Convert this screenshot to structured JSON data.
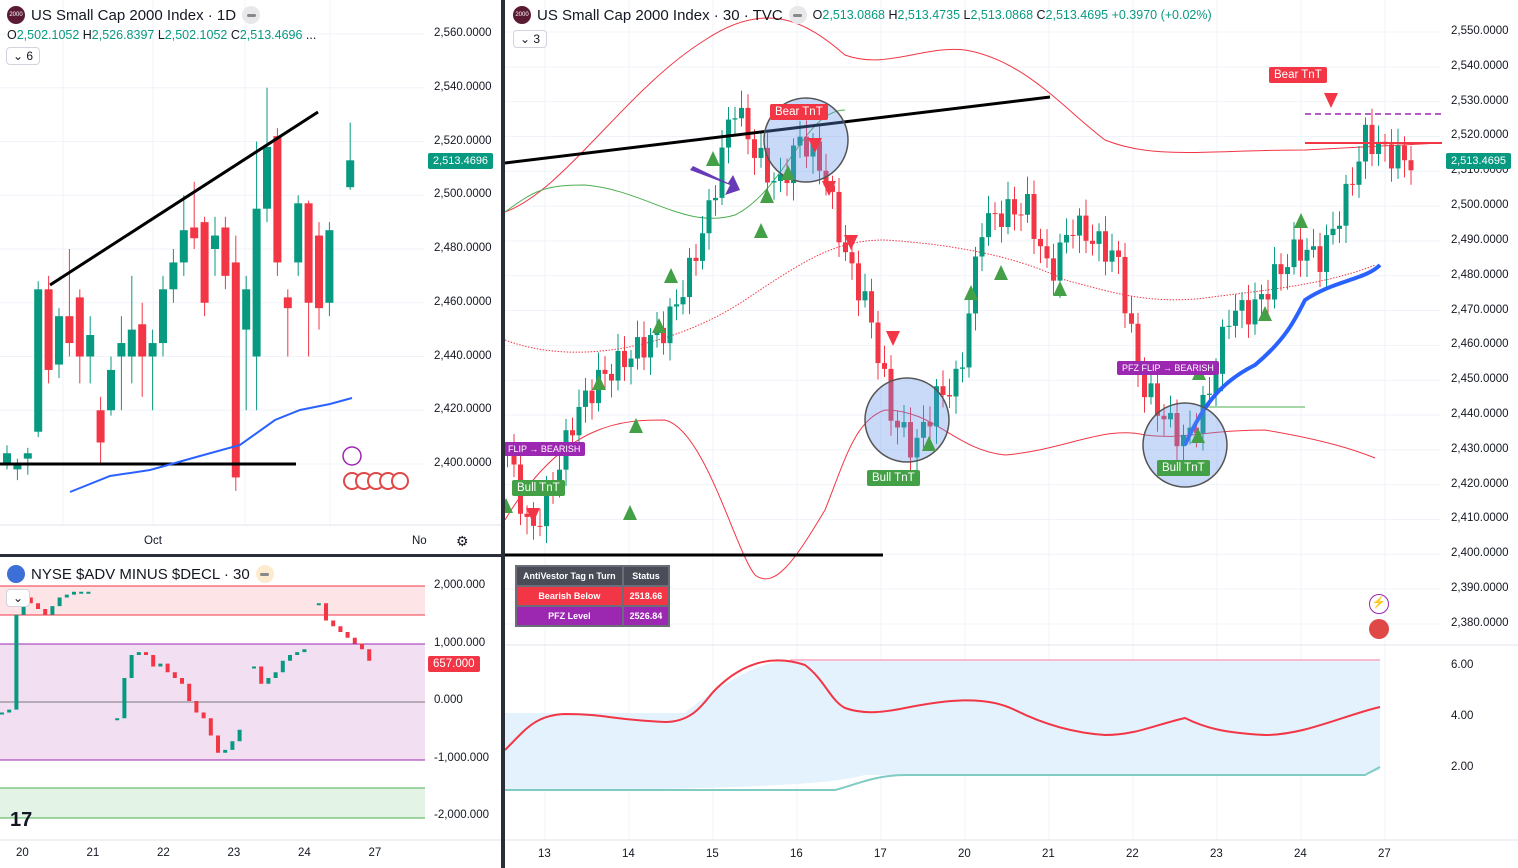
{
  "left_chart": {
    "title": "US Small Cap 2000 Index · 1D",
    "logo": "2000",
    "ohlc": {
      "o": "2,502.1052",
      "h": "2,526.8397",
      "l": "2,502.1052",
      "c": "2,513.4696"
    },
    "more": "...",
    "collapse_count": "6",
    "price_labels": [
      "2,560.0000",
      "2,540.0000",
      "2,520.0000",
      "2,500.0000",
      "2,480.0000",
      "2,460.0000",
      "2,440.0000",
      "2,420.0000",
      "2,400.0000"
    ],
    "last_price": "2,513.4696",
    "time_labels": [
      "Oct",
      "No"
    ]
  },
  "adv_chart": {
    "title": "NYSE $ADV MINUS $DECL · 30",
    "price_labels": [
      "2,000.000",
      "1,000.000",
      "0.000",
      "-1,000.000",
      "-2,000.000"
    ],
    "last_value": "657.000",
    "time_labels": [
      "20",
      "21",
      "22",
      "23",
      "24",
      "27"
    ]
  },
  "main_chart": {
    "title": "US Small Cap 2000 Index · 30 · TVC",
    "logo": "2000",
    "ohlc": {
      "o": "2,513.0868",
      "h": "2,513.4735",
      "l": "2,513.0868",
      "c": "2,513.4695",
      "chg": "+0.3970 (+0.02%)"
    },
    "collapse_count": "3",
    "price_labels": [
      "2,550.0000",
      "2,540.0000",
      "2,530.0000",
      "2,520.0000",
      "2,510.0000",
      "2,500.0000",
      "2,490.0000",
      "2,480.0000",
      "2,470.0000",
      "2,460.0000",
      "2,450.0000",
      "2,440.0000",
      "2,430.0000",
      "2,420.0000",
      "2,410.0000",
      "2,400.0000",
      "2,390.0000",
      "2,380.0000"
    ],
    "last_price": "2,513.4695",
    "osc_labels": [
      "6.00",
      "4.00",
      "2.00"
    ],
    "time_labels": [
      "13",
      "14",
      "15",
      "16",
      "17",
      "20",
      "21",
      "22",
      "23",
      "24",
      "27"
    ],
    "tags": {
      "bear1": "Bear TnT",
      "bear2": "Bear TnT",
      "bull1": "Bull TnT",
      "bull2": "Bull TnT",
      "bull3": "Bull TnT",
      "flip1": "FLIP → BEARISH",
      "flip2": "PFZ FLIP → BEARISH"
    },
    "table": {
      "headers": [
        "AntiVestor Tag n Turn",
        "Status"
      ],
      "rows": [
        [
          "Bearish Below",
          "2518.66"
        ],
        [
          "PFZ Level",
          "2526.84"
        ]
      ]
    }
  },
  "colors": {
    "up": "#089981",
    "down": "#f23645",
    "accent": "#2962ff",
    "purple": "#9c27b0"
  },
  "chart_data": [
    {
      "type": "candlestick",
      "name": "daily",
      "ylim": [
        2390,
        2570
      ],
      "series": [
        [
          2400,
          2404,
          2398,
          2407
        ],
        [
          2398,
          2400,
          2394,
          2402
        ],
        [
          2402,
          2404,
          2396,
          2406
        ],
        [
          2412,
          2465,
          2410,
          2468
        ],
        [
          2465,
          2435,
          2430,
          2470
        ],
        [
          2437,
          2455,
          2432,
          2458
        ],
        [
          2455,
          2445,
          2440,
          2480
        ],
        [
          2462,
          2440,
          2430,
          2465
        ],
        [
          2440,
          2448,
          2430,
          2455
        ],
        [
          2420,
          2408,
          2400,
          2425
        ],
        [
          2420,
          2435,
          2418,
          2440
        ],
        [
          2440,
          2445,
          2420,
          2455
        ],
        [
          2440,
          2450,
          2430,
          2470
        ],
        [
          2452,
          2440,
          2425,
          2460
        ],
        [
          2440,
          2445,
          2420,
          2450
        ],
        [
          2445,
          2465,
          2440,
          2470
        ],
        [
          2465,
          2475,
          2460,
          2480
        ],
        [
          2475,
          2487,
          2470,
          2500
        ],
        [
          2488,
          2484,
          2480,
          2505
        ],
        [
          2490,
          2460,
          2455,
          2492
        ],
        [
          2480,
          2485,
          2470,
          2492
        ],
        [
          2488,
          2470,
          2465,
          2492
        ],
        [
          2475,
          2395,
          2390,
          2485
        ],
        [
          2450,
          2465,
          2420,
          2470
        ],
        [
          2440,
          2495,
          2420,
          2520
        ],
        [
          2495,
          2518,
          2490,
          2540
        ],
        [
          2522,
          2475,
          2470,
          2525
        ],
        [
          2462,
          2458,
          2440,
          2465
        ],
        [
          2475,
          2497,
          2470,
          2500
        ],
        [
          2497,
          2460,
          2440,
          2498
        ],
        [
          2485,
          2458,
          2450,
          2490
        ],
        [
          2460,
          2487,
          2455,
          2490
        ],
        [
          null,
          null,
          null,
          null
        ],
        [
          2503,
          2513,
          2502,
          2527
        ]
      ]
    },
    {
      "type": "line",
      "name": "intraday-close-waypoints",
      "ylim": [
        2375,
        2555
      ],
      "values": [
        2430,
        2405,
        2420,
        2440,
        2450,
        2455,
        2460,
        2465,
        2480,
        2500,
        2530,
        2515,
        2505,
        2520,
        2510,
        2485,
        2470,
        2440,
        2430,
        2445,
        2450,
        2495,
        2498,
        2500,
        2480,
        2495,
        2490,
        2485,
        2450,
        2440,
        2432,
        2445,
        2470,
        2470,
        2480,
        2488,
        2485,
        2500,
        2520,
        2515,
        2513
      ]
    }
  ]
}
